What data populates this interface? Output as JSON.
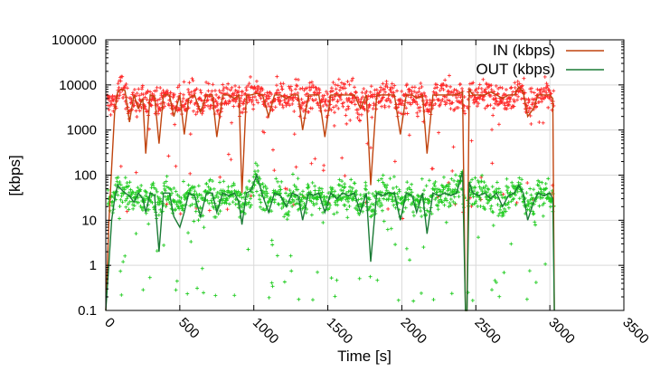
{
  "chart_data": {
    "type": "line",
    "xlabel": "Time [s]",
    "ylabel": "[kbps]",
    "xlim": [
      0,
      3500
    ],
    "ylim": [
      0.1,
      100000
    ],
    "yscale": "log",
    "grid": true,
    "legend_position": "top-right",
    "x_ticks": [
      0,
      500,
      1000,
      1500,
      2000,
      2500,
      3000,
      3500
    ],
    "x_tick_labels": [
      "0",
      "500",
      "1000",
      "1500",
      "2000",
      "2500",
      "3000",
      "3500"
    ],
    "y_ticks": [
      0.1,
      1,
      10,
      100,
      1000,
      10000,
      100000
    ],
    "y_tick_labels": [
      "0.1",
      "1",
      "10",
      "100",
      "1000",
      "10000",
      "100000"
    ],
    "series": [
      {
        "name": "IN (kbps)",
        "line_color": "#c0440e",
        "scatter_color": "#ff2a2a",
        "points": [
          [
            0,
            0.1
          ],
          [
            20,
            8
          ],
          [
            40,
            150
          ],
          [
            60,
            2500
          ],
          [
            80,
            7000
          ],
          [
            100,
            8000
          ],
          [
            130,
            7500
          ],
          [
            160,
            1500
          ],
          [
            190,
            6000
          ],
          [
            220,
            3000
          ],
          [
            250,
            5000
          ],
          [
            270,
            300
          ],
          [
            300,
            6000
          ],
          [
            330,
            5500
          ],
          [
            360,
            500
          ],
          [
            390,
            6000
          ],
          [
            430,
            6000
          ],
          [
            460,
            2000
          ],
          [
            500,
            6000
          ],
          [
            530,
            800
          ],
          [
            560,
            5000
          ],
          [
            600,
            6000
          ],
          [
            640,
            2500
          ],
          [
            680,
            6000
          ],
          [
            720,
            6000
          ],
          [
            750,
            700
          ],
          [
            790,
            6000
          ],
          [
            830,
            6000
          ],
          [
            870,
            5000
          ],
          [
            900,
            6000
          ],
          [
            920,
            40
          ],
          [
            950,
            6000
          ],
          [
            980,
            6000
          ],
          [
            1020,
            6500
          ],
          [
            1060,
            6000
          ],
          [
            1100,
            2000
          ],
          [
            1140,
            6000
          ],
          [
            1180,
            6000
          ],
          [
            1220,
            5000
          ],
          [
            1260,
            6000
          ],
          [
            1300,
            6000
          ],
          [
            1330,
            1000
          ],
          [
            1370,
            6000
          ],
          [
            1400,
            6000
          ],
          [
            1440,
            6000
          ],
          [
            1480,
            700
          ],
          [
            1520,
            6000
          ],
          [
            1560,
            6000
          ],
          [
            1600,
            6000
          ],
          [
            1640,
            6000
          ],
          [
            1680,
            6000
          ],
          [
            1720,
            3000
          ],
          [
            1760,
            6000
          ],
          [
            1790,
            60
          ],
          [
            1830,
            6000
          ],
          [
            1870,
            6000
          ],
          [
            1910,
            6000
          ],
          [
            1950,
            6000
          ],
          [
            1990,
            800
          ],
          [
            2030,
            6000
          ],
          [
            2070,
            6000
          ],
          [
            2100,
            5000
          ],
          [
            2140,
            6000
          ],
          [
            2170,
            300
          ],
          [
            2210,
            6000
          ],
          [
            2250,
            6000
          ],
          [
            2290,
            6000
          ],
          [
            2330,
            6000
          ],
          [
            2370,
            6000
          ],
          [
            2410,
            7000
          ],
          [
            2430,
            0.1
          ],
          [
            2440,
            0.1
          ],
          [
            2455,
            8000
          ],
          [
            2480,
            6000
          ],
          [
            2520,
            6000
          ],
          [
            2560,
            6000
          ],
          [
            2600,
            7000
          ],
          [
            2640,
            6000
          ],
          [
            2680,
            5000
          ],
          [
            2720,
            6000
          ],
          [
            2760,
            6000
          ],
          [
            2790,
            9000
          ],
          [
            2820,
            7000
          ],
          [
            2850,
            2000
          ],
          [
            2890,
            3000
          ],
          [
            2920,
            6000
          ],
          [
            2960,
            6000
          ],
          [
            3000,
            6000
          ],
          [
            3020,
            5000
          ],
          [
            3030,
            0.1
          ]
        ]
      },
      {
        "name": "OUT (kbps)",
        "line_color": "#1a7a35",
        "scatter_color": "#22cc22",
        "points": [
          [
            0,
            0.1
          ],
          [
            20,
            1
          ],
          [
            40,
            10
          ],
          [
            60,
            30
          ],
          [
            80,
            60
          ],
          [
            100,
            50
          ],
          [
            130,
            40
          ],
          [
            160,
            35
          ],
          [
            190,
            25
          ],
          [
            220,
            40
          ],
          [
            250,
            30
          ],
          [
            270,
            15
          ],
          [
            300,
            40
          ],
          [
            330,
            35
          ],
          [
            360,
            2
          ],
          [
            390,
            40
          ],
          [
            430,
            40
          ],
          [
            460,
            12
          ],
          [
            500,
            7
          ],
          [
            530,
            15
          ],
          [
            560,
            40
          ],
          [
            600,
            35
          ],
          [
            640,
            12
          ],
          [
            680,
            40
          ],
          [
            720,
            40
          ],
          [
            750,
            15
          ],
          [
            790,
            40
          ],
          [
            830,
            35
          ],
          [
            870,
            40
          ],
          [
            900,
            25
          ],
          [
            920,
            8
          ],
          [
            950,
            40
          ],
          [
            980,
            45
          ],
          [
            1020,
            100
          ],
          [
            1060,
            35
          ],
          [
            1100,
            15
          ],
          [
            1140,
            40
          ],
          [
            1180,
            35
          ],
          [
            1220,
            20
          ],
          [
            1260,
            40
          ],
          [
            1300,
            35
          ],
          [
            1330,
            10
          ],
          [
            1370,
            40
          ],
          [
            1400,
            35
          ],
          [
            1440,
            40
          ],
          [
            1480,
            15
          ],
          [
            1520,
            40
          ],
          [
            1560,
            30
          ],
          [
            1600,
            40
          ],
          [
            1640,
            35
          ],
          [
            1680,
            40
          ],
          [
            1720,
            15
          ],
          [
            1760,
            40
          ],
          [
            1790,
            1.2
          ],
          [
            1830,
            40
          ],
          [
            1870,
            35
          ],
          [
            1910,
            40
          ],
          [
            1950,
            40
          ],
          [
            1990,
            10
          ],
          [
            2030,
            40
          ],
          [
            2070,
            35
          ],
          [
            2100,
            15
          ],
          [
            2140,
            40
          ],
          [
            2170,
            5
          ],
          [
            2210,
            40
          ],
          [
            2250,
            35
          ],
          [
            2290,
            40
          ],
          [
            2330,
            35
          ],
          [
            2370,
            40
          ],
          [
            2410,
            120
          ],
          [
            2430,
            0.1
          ],
          [
            2440,
            0.1
          ],
          [
            2455,
            70
          ],
          [
            2480,
            40
          ],
          [
            2520,
            35
          ],
          [
            2560,
            40
          ],
          [
            2600,
            30
          ],
          [
            2640,
            40
          ],
          [
            2680,
            20
          ],
          [
            2720,
            35
          ],
          [
            2760,
            40
          ],
          [
            2790,
            60
          ],
          [
            2820,
            40
          ],
          [
            2850,
            10
          ],
          [
            2890,
            25
          ],
          [
            2920,
            40
          ],
          [
            2960,
            35
          ],
          [
            3000,
            40
          ],
          [
            3020,
            30
          ],
          [
            3030,
            0.1
          ]
        ]
      }
    ]
  }
}
